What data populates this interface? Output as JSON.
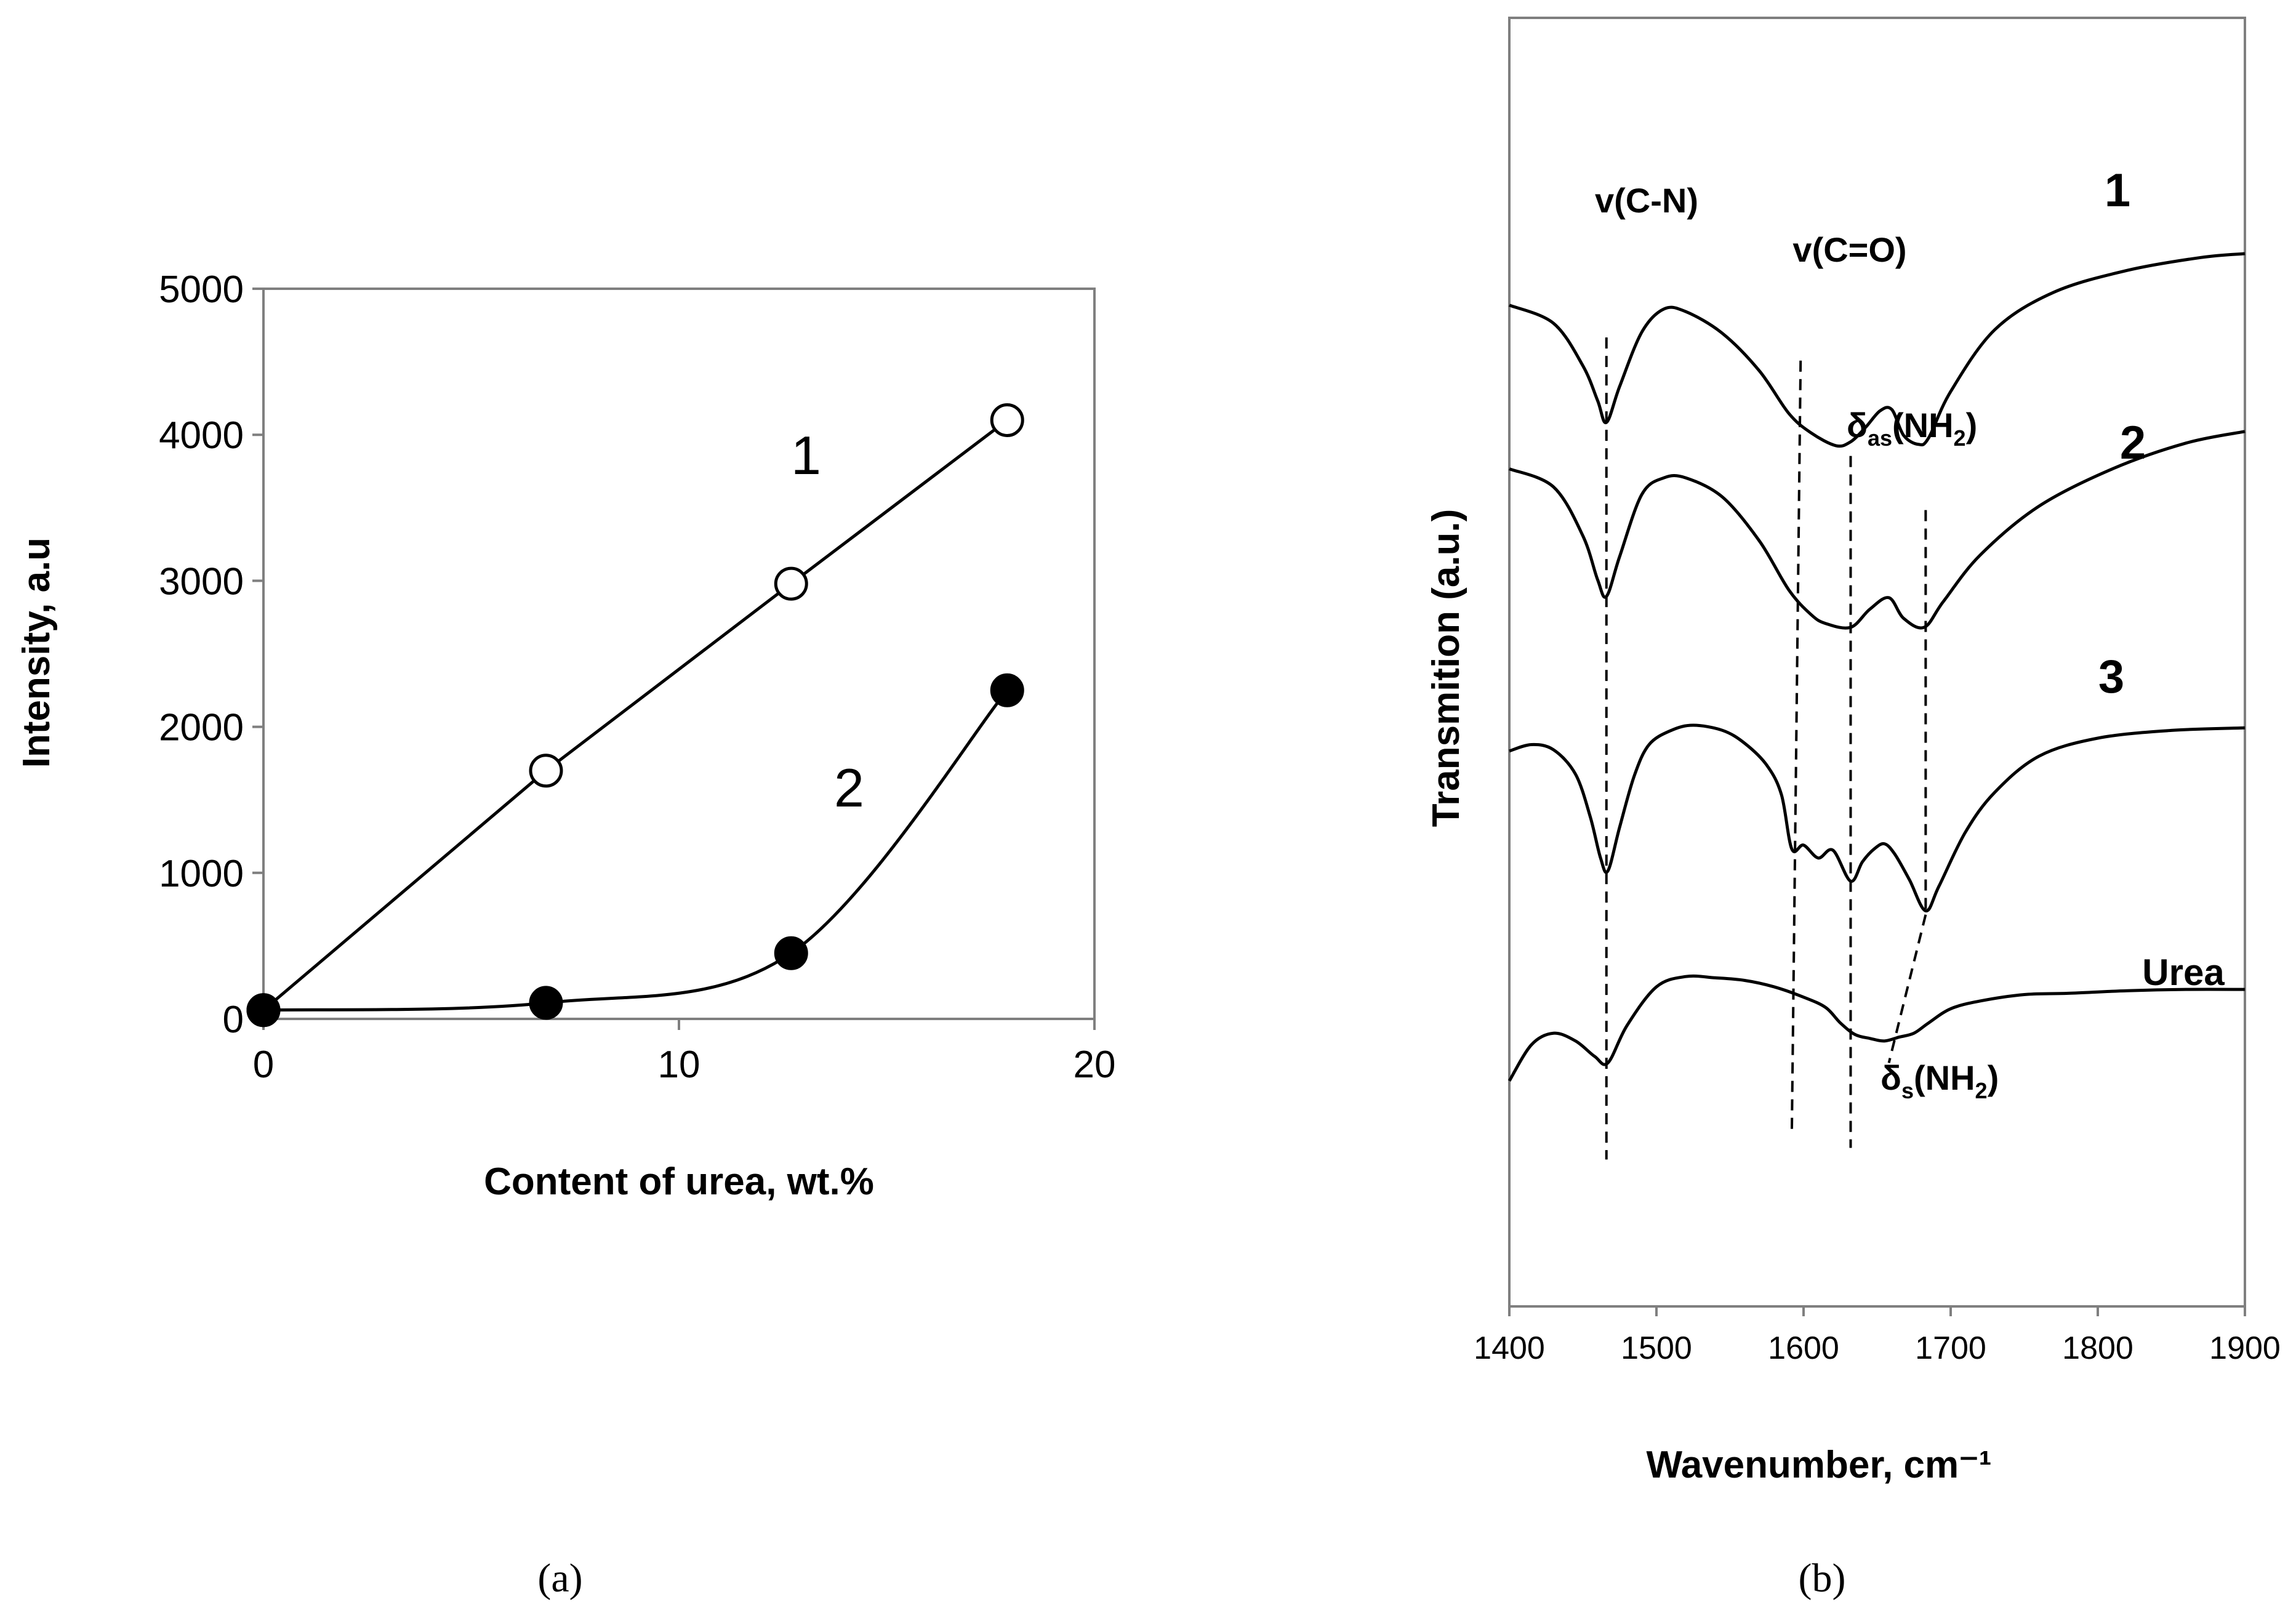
{
  "chart_data": [
    {
      "type": "line",
      "panel": "a",
      "panel_label": "(a)",
      "xlabel": "Content of urea, wt.%",
      "ylabel": "Intensity, a.u",
      "xlim": [
        0,
        20
      ],
      "ylim": [
        0,
        5000
      ],
      "xticks": [
        "0",
        "10",
        "20"
      ],
      "yticks": [
        "0",
        "1000",
        "2000",
        "3000",
        "4000",
        "5000"
      ],
      "grid": false,
      "series": [
        {
          "name": "1",
          "marker": "open-circle",
          "smooth": false,
          "x": [
            0,
            6.8,
            12.7,
            17.9
          ],
          "y": [
            60,
            1700,
            2980,
            4100
          ]
        },
        {
          "name": "2",
          "marker": "filled-circle",
          "smooth": true,
          "x": [
            0,
            6.8,
            12.7,
            17.9
          ],
          "y": [
            60,
            110,
            450,
            2250
          ]
        }
      ]
    },
    {
      "type": "line",
      "panel": "b",
      "panel_label": "(b)",
      "xlabel": "Wavenumber, cm⁻¹",
      "ylabel": "Transmition (a.u.)",
      "xlim": [
        1400,
        1900
      ],
      "ylim": [
        0,
        100
      ],
      "xticks": [
        "1400",
        "1500",
        "1600",
        "1700",
        "1800",
        "1900"
      ],
      "yticks": [],
      "series": [
        {
          "name": "1",
          "label": "1",
          "x": [
            1400,
            1430,
            1450,
            1460,
            1466,
            1475,
            1490,
            1505,
            1520,
            1545,
            1570,
            1590,
            1605,
            1622,
            1632,
            1642,
            1652,
            1660,
            1668,
            1678,
            1685,
            1700,
            1730,
            1770,
            1820,
            1870,
            1900
          ],
          "y": [
            77.7,
            76.3,
            73.0,
            70.3,
            68.6,
            71.4,
            75.6,
            77.4,
            77.2,
            75.5,
            72.6,
            69.3,
            67.8,
            66.8,
            67.1,
            68.2,
            69.5,
            69.6,
            67.6,
            66.9,
            67.4,
            71.0,
            75.8,
            78.7,
            80.4,
            81.4,
            81.7
          ]
        },
        {
          "name": "2",
          "label": "2",
          "x": [
            1400,
            1430,
            1450,
            1460,
            1466,
            1475,
            1490,
            1505,
            1520,
            1545,
            1570,
            1590,
            1605,
            1615,
            1632,
            1645,
            1658,
            1668,
            1682,
            1695,
            1720,
            1760,
            1810,
            1860,
            1900
          ],
          "y": [
            65.0,
            63.6,
            59.8,
            56.4,
            55.1,
            58.2,
            63.0,
            64.3,
            64.3,
            62.8,
            59.4,
            55.6,
            53.7,
            53.0,
            52.7,
            54.1,
            55.0,
            53.4,
            52.7,
            54.7,
            58.3,
            62.1,
            65.0,
            67.0,
            67.9
          ]
        },
        {
          "name": "3",
          "label": "3",
          "x": [
            1400,
            1415,
            1430,
            1445,
            1455,
            1462,
            1467,
            1475,
            1485,
            1495,
            1510,
            1525,
            1545,
            1560,
            1575,
            1585,
            1592,
            1600,
            1610,
            1620,
            1632,
            1640,
            1648,
            1655,
            1662,
            1672,
            1683,
            1692,
            1710,
            1730,
            1760,
            1800,
            1850,
            1900
          ],
          "y": [
            43.1,
            43.6,
            43.2,
            41.3,
            38.0,
            34.8,
            33.8,
            37.2,
            41.2,
            43.6,
            44.7,
            45.1,
            44.7,
            43.7,
            42.0,
            39.7,
            35.5,
            35.8,
            34.8,
            35.4,
            33.0,
            34.5,
            35.5,
            35.9,
            35.1,
            33.1,
            30.7,
            32.6,
            36.8,
            39.9,
            42.7,
            44.1,
            44.7,
            44.9
          ]
        },
        {
          "name": "Urea",
          "label": "Urea",
          "x": [
            1400,
            1415,
            1430,
            1445,
            1458,
            1467,
            1480,
            1500,
            1520,
            1540,
            1560,
            1580,
            1600,
            1615,
            1625,
            1635,
            1645,
            1655,
            1665,
            1675,
            1685,
            1700,
            1720,
            1750,
            1780,
            1820,
            1860,
            1900
          ],
          "y": [
            17.5,
            20.3,
            21.2,
            20.6,
            19.4,
            18.9,
            21.8,
            24.8,
            25.6,
            25.5,
            25.3,
            24.8,
            24.0,
            23.2,
            22.0,
            21.1,
            20.8,
            20.6,
            20.9,
            21.2,
            22.0,
            23.1,
            23.7,
            24.2,
            24.3,
            24.5,
            24.6,
            24.6
          ]
        }
      ],
      "annotations": [
        {
          "type": "band-label",
          "text": "v(C-N)"
        },
        {
          "type": "band-label",
          "text": "v(C=O)"
        },
        {
          "type": "band-label",
          "main": "δ",
          "sub": "as",
          "text": "(NH",
          "sub2": "2",
          "tail": ")"
        },
        {
          "type": "band-label",
          "main": "δ",
          "sub": "s",
          "text": "(NH",
          "sub2": "2",
          "tail": ")"
        }
      ],
      "guides": [
        {
          "x_top": 1466,
          "y_top": 75.2,
          "x_bot": 1466,
          "y_bot": 11.4
        },
        {
          "x_top": 1598,
          "y_top": 73.4,
          "x_bot": 1592,
          "y_bot": 13.3
        },
        {
          "x_top": 1632,
          "y_top": 66.0,
          "x_bot": 1632,
          "y_bot": 12.3
        },
        {
          "x_top": 1683,
          "y_top": 61.8,
          "x_bot": 1683,
          "y_bot": 30.4
        },
        {
          "x_top": 1683,
          "y_top": 30.4,
          "x_bot": 1658,
          "y_bot": 18.9
        }
      ]
    }
  ]
}
